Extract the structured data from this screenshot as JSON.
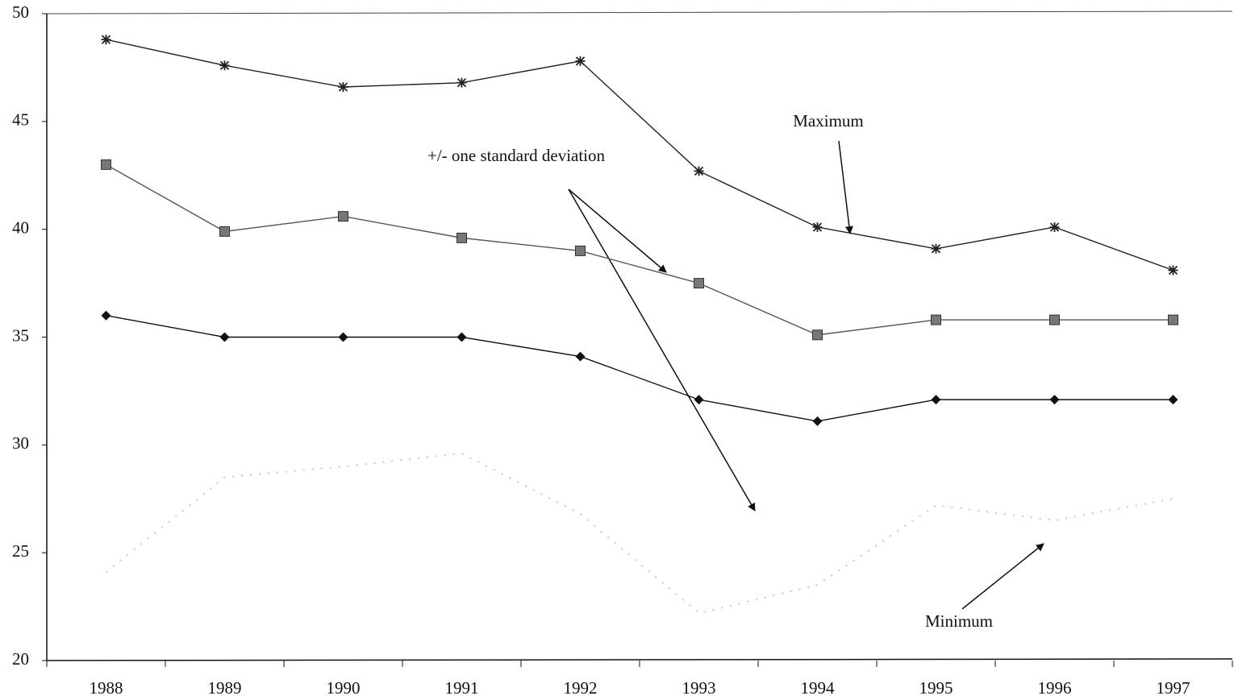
{
  "chart_data": {
    "type": "line",
    "categories": [
      "1988",
      "1989",
      "1990",
      "1991",
      "1992",
      "1993",
      "1994",
      "1995",
      "1996",
      "1997"
    ],
    "series": [
      {
        "color": "#222222",
        "marker": "star",
        "values": [
          48.8,
          47.6,
          46.6,
          46.8,
          47.8,
          42.7,
          40.1,
          39.1,
          40.1,
          38.1
        ]
      },
      {
        "color": "#555555",
        "marker": "square",
        "values": [
          43.0,
          39.9,
          40.6,
          39.6,
          39.0,
          37.5,
          35.1,
          35.8,
          35.8,
          35.8
        ]
      },
      {
        "color": "#111111",
        "marker": "diamond",
        "values": [
          36.0,
          35.0,
          35.0,
          35.0,
          34.1,
          32.1,
          31.1,
          32.1,
          32.1,
          32.1
        ]
      },
      {
        "color": "#c8c8c8",
        "marker": "none",
        "values": [
          24.1,
          28.5,
          29.0,
          29.6,
          26.8,
          22.2,
          23.5,
          27.2,
          26.5,
          27.5
        ]
      }
    ],
    "annotations": [
      "Maximum",
      "+/- one standard deviation",
      "Minimum"
    ],
    "ylim": [
      20,
      50
    ],
    "yticks": [
      20,
      25,
      30,
      35,
      40,
      45,
      50
    ],
    "grid": false
  }
}
